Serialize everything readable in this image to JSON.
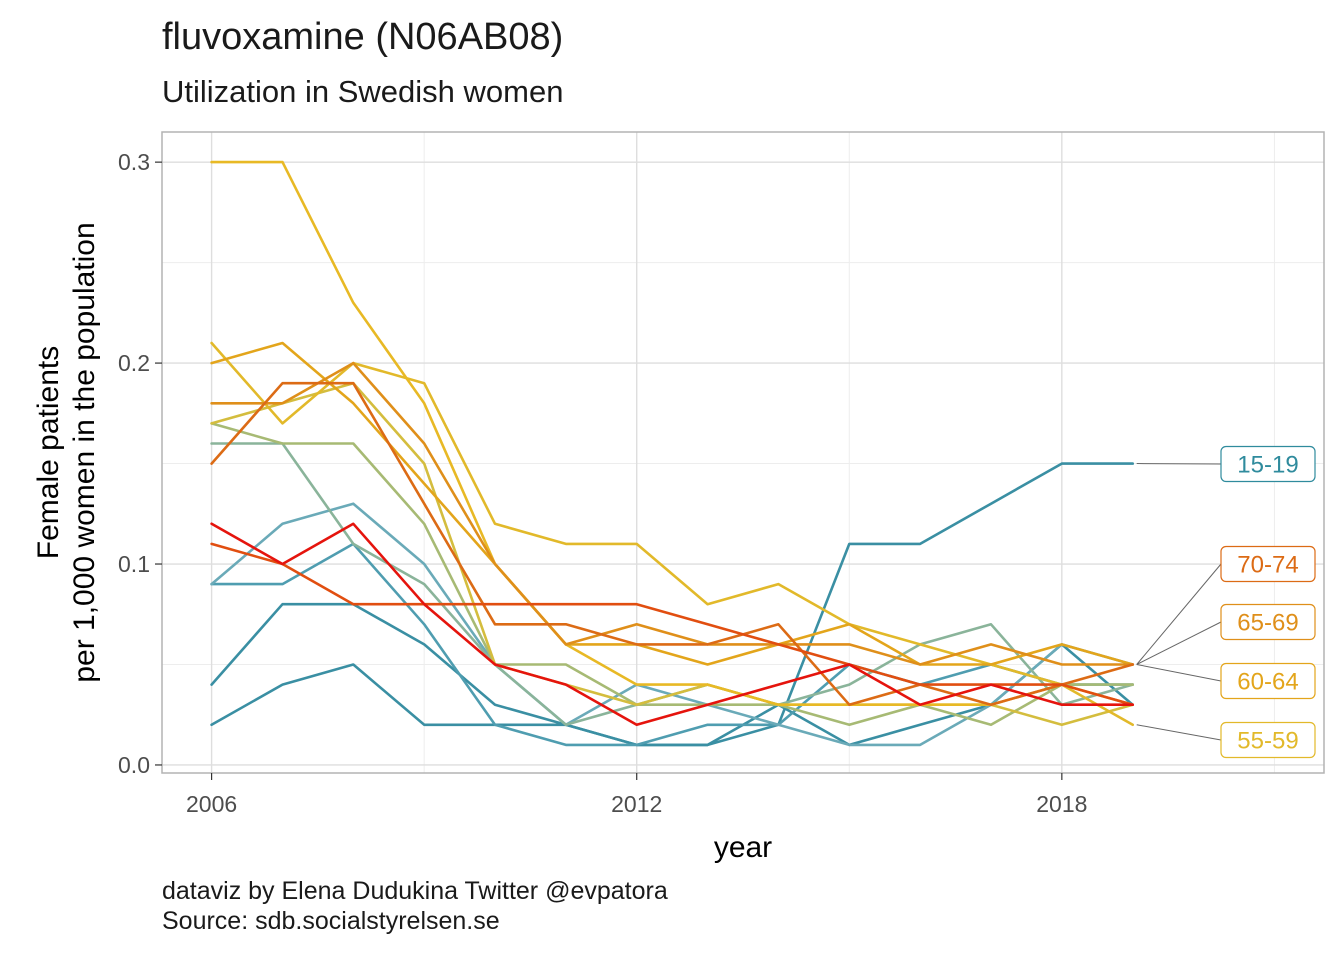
{
  "title": "fluvoxamine (N06AB08)",
  "subtitle": "Utilization in Swedish women",
  "caption": [
    "dataviz by Elena Dudukina Twitter @evpatora",
    "Source: sdb.socialstyrelsen.se"
  ],
  "chart_data": {
    "type": "line",
    "xlabel": "year",
    "ylabel": [
      "Female patients",
      "per 1,000 women in the population"
    ],
    "x": [
      2006,
      2007,
      2008,
      2009,
      2010,
      2011,
      2012,
      2013,
      2014,
      2015,
      2016,
      2017,
      2018,
      2019
    ],
    "xlim": [
      2005.3,
      2021.7
    ],
    "ylim": [
      -0.004,
      0.315
    ],
    "xticks": [
      2006,
      2012,
      2018
    ],
    "xtick_labels": [
      "2006",
      "2012",
      "2018"
    ],
    "yticks": [
      0.0,
      0.1,
      0.2,
      0.3
    ],
    "ytick_labels": [
      "0.0",
      "0.1",
      "0.2",
      "0.3"
    ],
    "grid": true,
    "series": [
      {
        "color": "#3a8fa3",
        "values": [
          0.02,
          0.04,
          0.05,
          0.02,
          0.02,
          0.02,
          0.01,
          0.01,
          0.02,
          0.11,
          0.11,
          0.13,
          0.15,
          0.15
        ]
      },
      {
        "color": "#3a8fa3",
        "values": [
          0.04,
          0.08,
          0.08,
          0.06,
          0.03,
          0.02,
          0.01,
          0.01,
          0.03,
          0.01,
          0.02,
          0.03,
          0.06,
          0.03
        ]
      },
      {
        "color": "#4f9db0",
        "values": [
          0.09,
          0.09,
          0.11,
          0.07,
          0.02,
          0.01,
          0.01,
          0.02,
          0.02,
          0.05,
          0.04,
          0.05,
          0.04,
          0.04
        ]
      },
      {
        "color": "#6aaab8",
        "values": [
          0.09,
          0.12,
          0.13,
          0.1,
          0.05,
          0.02,
          0.04,
          0.03,
          0.02,
          0.01,
          0.01,
          0.03,
          0.06,
          0.05
        ]
      },
      {
        "color": "#8ab49a",
        "values": [
          0.16,
          0.16,
          0.11,
          0.09,
          0.05,
          0.02,
          0.03,
          0.04,
          0.03,
          0.04,
          0.06,
          0.07,
          0.03,
          0.04
        ]
      },
      {
        "color": "#a7ba74",
        "values": [
          0.17,
          0.16,
          0.16,
          0.12,
          0.05,
          0.05,
          0.03,
          0.03,
          0.03,
          0.02,
          0.03,
          0.02,
          0.04,
          0.04
        ]
      },
      {
        "color": "#d4bd3e",
        "values": [
          0.17,
          0.18,
          0.19,
          0.15,
          0.05,
          0.04,
          0.03,
          0.04,
          0.03,
          0.03,
          0.03,
          0.03,
          0.02,
          0.03
        ]
      },
      {
        "color": "#e2b92a",
        "values": [
          0.21,
          0.17,
          0.2,
          0.19,
          0.12,
          0.11,
          0.11,
          0.08,
          0.09,
          0.07,
          0.06,
          0.05,
          0.04,
          0.02
        ]
      },
      {
        "color": "#e8b925",
        "values": [
          0.3,
          0.3,
          0.23,
          0.18,
          0.1,
          0.06,
          0.04,
          0.04,
          0.03,
          0.03,
          0.03,
          0.03,
          0.04,
          0.03
        ]
      },
      {
        "color": "#e3a51b",
        "values": [
          0.2,
          0.21,
          0.18,
          0.14,
          0.1,
          0.06,
          0.06,
          0.05,
          0.06,
          0.07,
          0.05,
          0.05,
          0.06,
          0.05
        ]
      },
      {
        "color": "#df8f1a",
        "values": [
          0.18,
          0.18,
          0.2,
          0.16,
          0.1,
          0.06,
          0.07,
          0.06,
          0.06,
          0.06,
          0.05,
          0.06,
          0.05,
          0.05
        ]
      },
      {
        "color": "#dc6b15",
        "values": [
          0.15,
          0.19,
          0.19,
          0.13,
          0.07,
          0.07,
          0.06,
          0.06,
          0.07,
          0.03,
          0.04,
          0.03,
          0.04,
          0.05
        ]
      },
      {
        "color": "#e14e10",
        "values": [
          0.11,
          0.1,
          0.08,
          0.08,
          0.08,
          0.08,
          0.08,
          0.07,
          0.06,
          0.05,
          0.04,
          0.04,
          0.04,
          0.03
        ]
      },
      {
        "color": "#e5140d",
        "values": [
          0.12,
          0.1,
          0.12,
          0.08,
          0.05,
          0.04,
          0.02,
          0.03,
          0.04,
          0.05,
          0.03,
          0.04,
          0.03,
          0.03
        ]
      }
    ],
    "labels": [
      {
        "text": "15-19",
        "color": "#2f8b9d",
        "x": 2019,
        "y": 0.15
      },
      {
        "text": "70-74",
        "color": "#dc6b15",
        "x": 2019,
        "y": 0.05
      },
      {
        "text": "65-69",
        "color": "#df8f1a",
        "x": 2019,
        "y": 0.05
      },
      {
        "text": "60-64",
        "color": "#e3a51b",
        "x": 2019,
        "y": 0.05
      },
      {
        "text": "55-59",
        "color": "#e2b92a",
        "x": 2019,
        "y": 0.02
      }
    ]
  },
  "colors": {
    "panel_border": "#b3b3b3",
    "grid_major": "#dedede",
    "grid_minor": "#ededed",
    "tick_text": "#4d4d4d",
    "leader_line": "#666666"
  }
}
